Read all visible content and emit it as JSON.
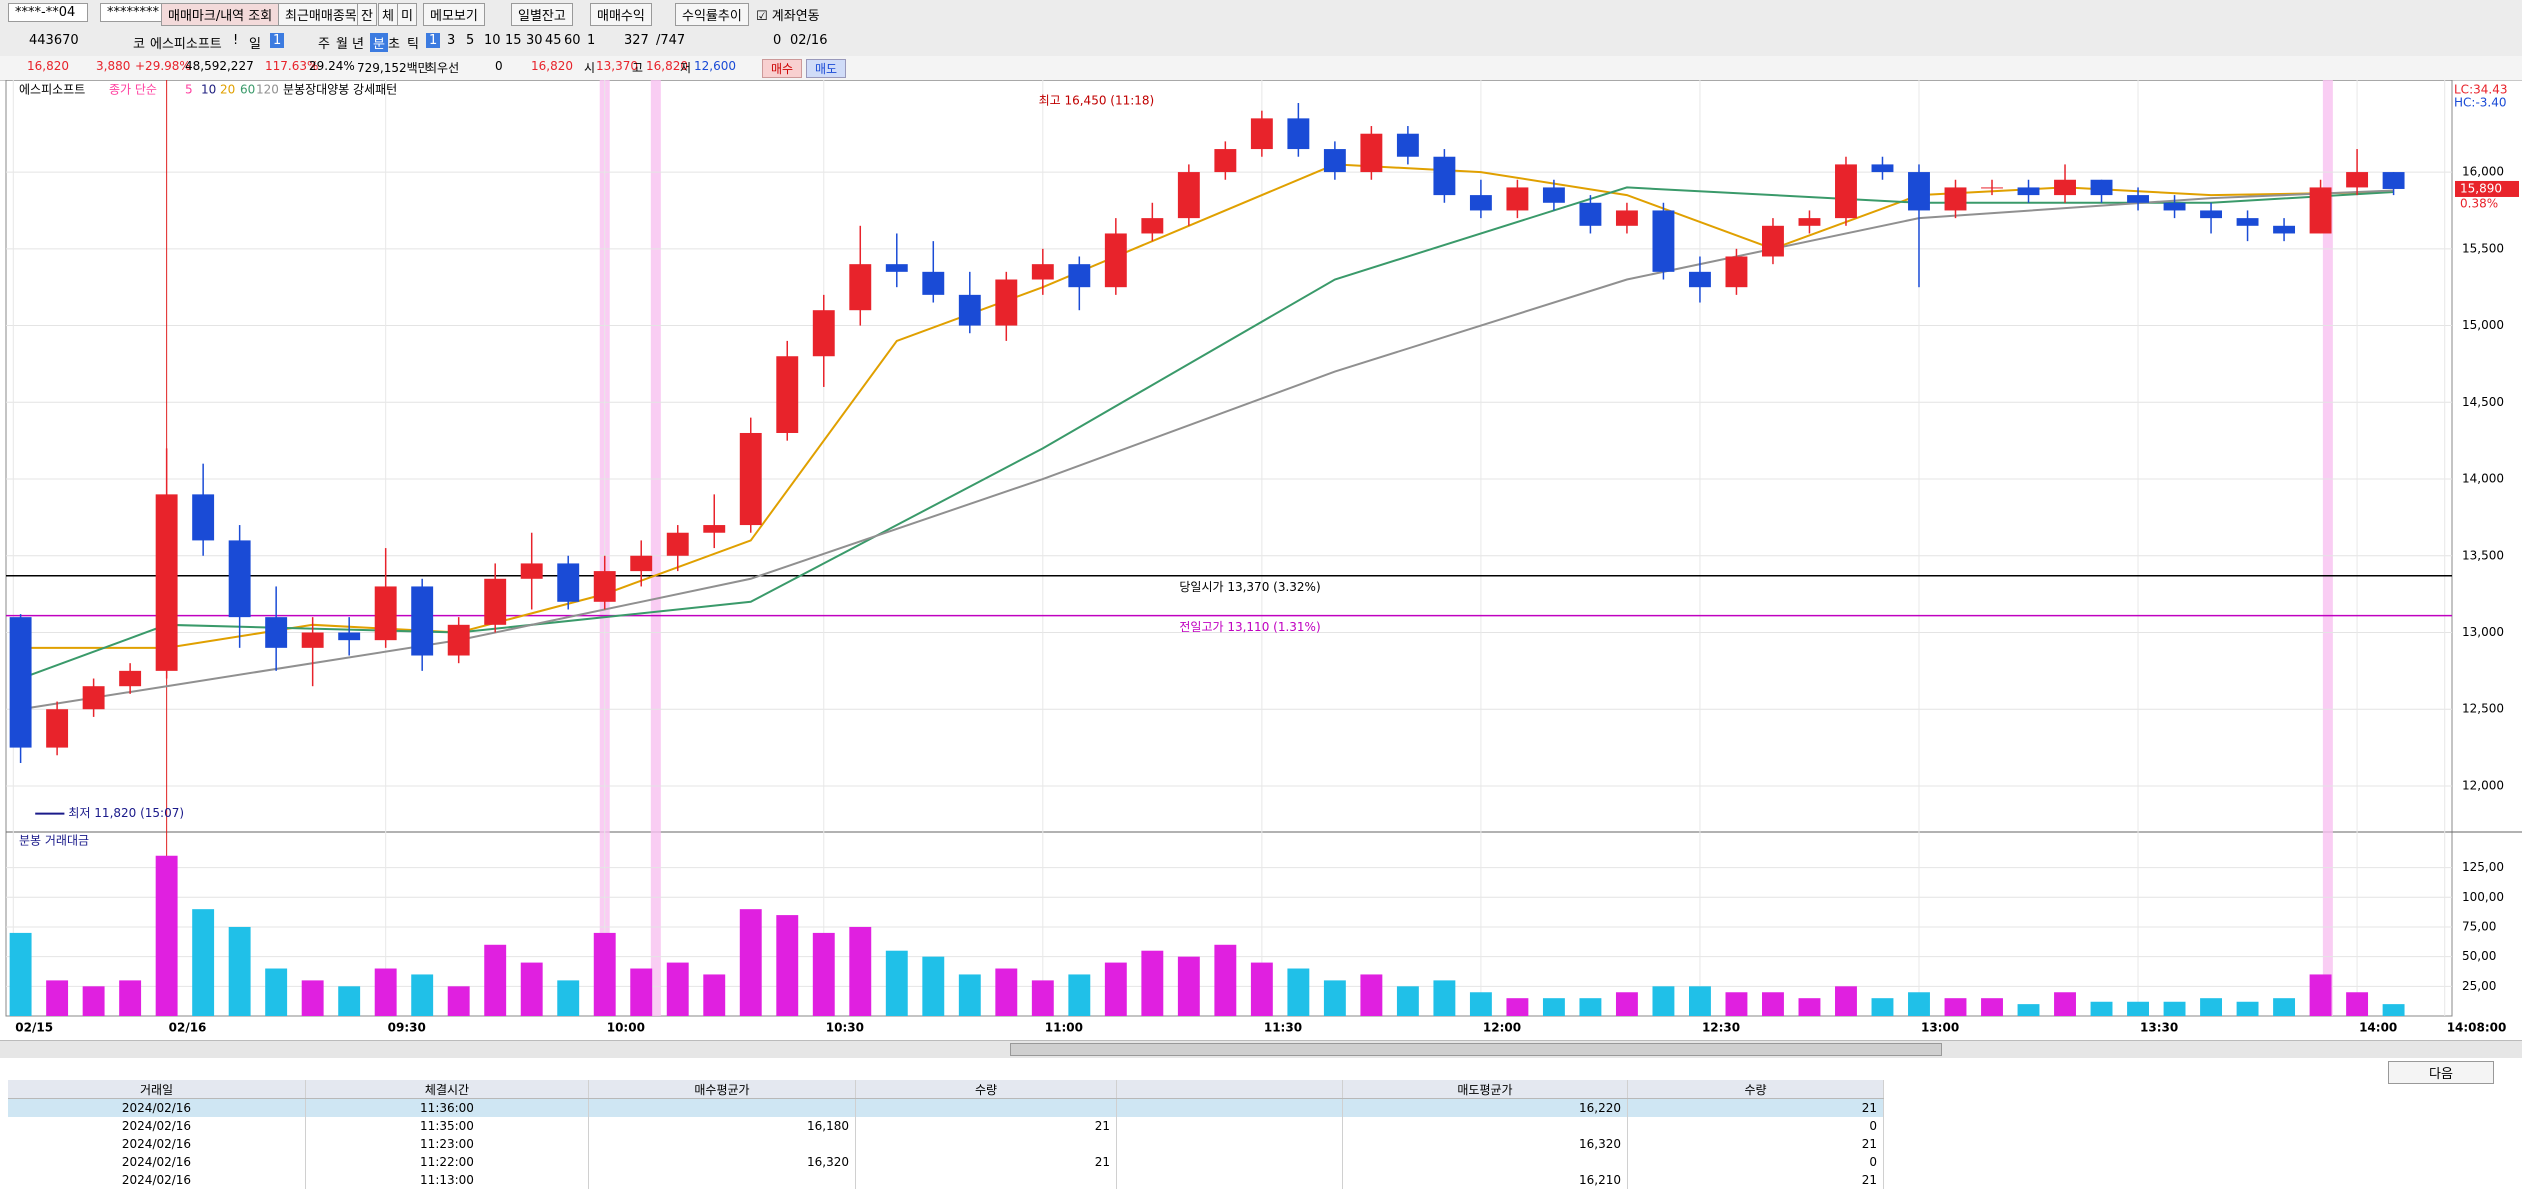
{
  "toolbar": {
    "row1": [
      "****-**04",
      "********",
      "매매마크/내역 조회",
      "최근매매종목",
      "잔",
      "체",
      "미",
      "메모보기",
      "일별잔고",
      "매매수익",
      "수익률추이",
      "계좌연동"
    ],
    "row2": [
      "443670",
      "코",
      "에스피소프트",
      "!",
      "일",
      "1",
      "주",
      "월",
      "년",
      "분",
      "초",
      "틱",
      "1",
      "3",
      "5",
      "10",
      "15",
      "30",
      "45",
      "60",
      "1",
      "327",
      "/747",
      "0",
      "02/16"
    ],
    "row3": [
      "16,820",
      "3,880",
      "+29.98%",
      "48,592,227",
      "117.63%",
      "29.24%",
      "729,152백만",
      "최우선",
      "0",
      "16,820",
      "시",
      "13,370",
      "고",
      "16,820",
      "저",
      "12,600",
      "매수",
      "매도"
    ]
  },
  "chart_data": {
    "type": "candlestick",
    "name": "에스피소프트",
    "ma_title": "종가 단순",
    "pattern": "분봉장대양봉 강세패턴",
    "lc": "LC:34.43",
    "hc": "HC:-3.40",
    "up_color": "#e8232b",
    "down_color": "#1a4bd6",
    "x": [
      -20,
      -15,
      -10,
      -5,
      0,
      5,
      10,
      15,
      20,
      25,
      30,
      35,
      40,
      45,
      50,
      55,
      60,
      65,
      70,
      75,
      80,
      85,
      90,
      95,
      100,
      105,
      110,
      115,
      120,
      125,
      130,
      135,
      140,
      145,
      150,
      155,
      160,
      165,
      170,
      175,
      180,
      185,
      190,
      195,
      200,
      205,
      210,
      215,
      220,
      225,
      230,
      235,
      240,
      245,
      250,
      255,
      260,
      265,
      270,
      275,
      280,
      285,
      290,
      295,
      300,
      305
    ],
    "open": [
      13100,
      12250,
      12500,
      12650,
      12750,
      13900,
      13600,
      13100,
      12900,
      13000,
      12950,
      13300,
      12850,
      13050,
      13350,
      13450,
      13200,
      13400,
      13500,
      13650,
      13700,
      14300,
      14800,
      15100,
      15400,
      15350,
      15200,
      15000,
      15300,
      15400,
      15250,
      15600,
      15700,
      16000,
      16150,
      16350,
      16150,
      16000,
      16250,
      16100,
      15850,
      15750,
      15900,
      15800,
      15650,
      15750,
      15350,
      15250,
      15450,
      15650,
      15700,
      16050,
      16000,
      15750,
      15900,
      15900,
      15850,
      15950,
      15850,
      15800,
      15750,
      15700,
      15650,
      15600,
      15900,
      16000
    ],
    "high": [
      13120,
      12550,
      12700,
      12800,
      14200,
      14100,
      13700,
      13300,
      13100,
      13100,
      13550,
      13350,
      13100,
      13450,
      13650,
      13500,
      13500,
      13600,
      13700,
      13900,
      14400,
      14900,
      15200,
      15650,
      15600,
      15550,
      15350,
      15350,
      15500,
      15450,
      15700,
      15800,
      16050,
      16200,
      16400,
      16450,
      16200,
      16300,
      16300,
      16150,
      15950,
      15950,
      15950,
      15850,
      15800,
      15800,
      15450,
      15500,
      15700,
      15750,
      16100,
      16100,
      16050,
      15950,
      15950,
      15950,
      16050,
      15950,
      15900,
      15850,
      15800,
      15750,
      15700,
      15950,
      16150,
      16000
    ],
    "low": [
      12150,
      12200,
      12450,
      12600,
      12700,
      13500,
      12900,
      12750,
      12650,
      12850,
      12900,
      12750,
      12800,
      13000,
      13150,
      13150,
      13150,
      13300,
      13400,
      13550,
      13650,
      14250,
      14600,
      15000,
      15250,
      15150,
      14950,
      14900,
      15200,
      15100,
      15200,
      15550,
      15650,
      15950,
      16100,
      16100,
      15950,
      15950,
      16050,
      15800,
      15700,
      15700,
      15750,
      15600,
      15600,
      15300,
      15150,
      15200,
      15400,
      15600,
      15650,
      15950,
      15250,
      15700,
      15850,
      15800,
      15800,
      15800,
      15750,
      15700,
      15600,
      15550,
      15550,
      15600,
      15850,
      15850
    ],
    "close": [
      12250,
      12500,
      12650,
      12750,
      13900,
      13600,
      13100,
      12900,
      13000,
      12950,
      13300,
      12850,
      13050,
      13350,
      13450,
      13200,
      13400,
      13500,
      13650,
      13700,
      14300,
      14800,
      15100,
      15400,
      15350,
      15200,
      15000,
      15300,
      15400,
      15250,
      15600,
      15700,
      16000,
      16150,
      16350,
      16150,
      16000,
      16250,
      16100,
      15850,
      15750,
      15900,
      15800,
      15650,
      15750,
      15350,
      15250,
      15450,
      15650,
      15700,
      16050,
      16000,
      15750,
      15900,
      15900,
      15850,
      15950,
      15850,
      15800,
      15750,
      15700,
      15650,
      15600,
      15900,
      16000,
      15890
    ],
    "ma": [
      {
        "name": "5",
        "color": "#ff40a0"
      },
      {
        "name": "10",
        "color": "#202080"
      },
      {
        "name": "20",
        "color": "#e0a000",
        "x": [
          -20,
          0,
          20,
          40,
          60,
          80,
          100,
          120,
          140,
          160,
          180,
          200,
          220,
          240,
          260,
          280,
          305
        ],
        "values": [
          12900,
          12900,
          13050,
          13000,
          13250,
          13600,
          14900,
          15250,
          15650,
          16050,
          16000,
          15850,
          15500,
          15850,
          15900,
          15850,
          15870
        ]
      },
      {
        "name": "60",
        "color": "#3a9a6a",
        "x": [
          -20,
          0,
          40,
          80,
          120,
          160,
          200,
          240,
          280,
          305
        ],
        "values": [
          12700,
          13050,
          13000,
          13200,
          14200,
          15300,
          15900,
          15800,
          15800,
          15870
        ]
      },
      {
        "name": "120",
        "color": "#909090",
        "x": [
          -20,
          0,
          40,
          80,
          120,
          160,
          200,
          240,
          280,
          305
        ],
        "values": [
          12500,
          12650,
          12950,
          13350,
          14000,
          14700,
          15300,
          15700,
          15830,
          15880
        ]
      }
    ],
    "xlim": [
      -22,
      313
    ],
    "xticks": [
      {
        "value": -21,
        "label": "02/15"
      },
      {
        "value": 0,
        "label": "02/16"
      },
      {
        "value": 30,
        "label": "09:30"
      },
      {
        "value": 60,
        "label": "10:00"
      },
      {
        "value": 90,
        "label": "10:30"
      },
      {
        "value": 120,
        "label": "11:00"
      },
      {
        "value": 150,
        "label": "11:30"
      },
      {
        "value": 180,
        "label": "12:00"
      },
      {
        "value": 210,
        "label": "12:30"
      },
      {
        "value": 240,
        "label": "13:00"
      },
      {
        "value": 270,
        "label": "13:30"
      },
      {
        "value": 300,
        "label": "14:00"
      },
      {
        "value": 312,
        "label": "14:08:00"
      }
    ],
    "ylim": [
      11700,
      16600
    ],
    "yticks": [
      {
        "value": 12000,
        "label": "12,000"
      },
      {
        "value": 12500,
        "label": "12,500"
      },
      {
        "value": 13000,
        "label": "13,000"
      },
      {
        "value": 13500,
        "label": "13,500"
      },
      {
        "value": 14000,
        "label": "14,000"
      },
      {
        "value": 14500,
        "label": "14,500"
      },
      {
        "value": 15000,
        "label": "15,000"
      },
      {
        "value": 15500,
        "label": "15,500"
      },
      {
        "value": 16000,
        "label": "16,000"
      }
    ],
    "ref_lines": [
      {
        "label": "당일시가 13,370 (3.32%)",
        "value": 13370,
        "color": "#000000"
      },
      {
        "label": "전일고가 13,110 (1.31%)",
        "value": 13110,
        "color": "#c000c0"
      }
    ],
    "annotations": [
      {
        "text": "최고 16,450 (11:18)",
        "value": 16450
      },
      {
        "text": "최저 11,820 (15:07)",
        "value": 11820
      }
    ],
    "last_price": {
      "value": 15890,
      "label": "15,890"
    },
    "last_change": "0.38%",
    "highlight_x": [
      60,
      67,
      296
    ],
    "volume_title": "분봉 거래대금",
    "volume_up_color": "#e020e0",
    "volume_down_color": "#20c0e8",
    "volume": [
      70,
      30,
      25,
      30,
      135,
      90,
      75,
      40,
      30,
      25,
      40,
      35,
      25,
      60,
      45,
      30,
      70,
      40,
      45,
      35,
      90,
      85,
      70,
      75,
      55,
      50,
      35,
      40,
      30,
      35,
      45,
      55,
      50,
      60,
      45,
      40,
      30,
      35,
      25,
      30,
      20,
      15,
      15,
      15,
      20,
      25,
      25,
      20,
      20,
      15,
      25,
      15,
      20,
      15,
      15,
      10,
      20,
      12,
      12,
      12,
      15,
      12,
      15,
      35,
      20,
      10
    ],
    "vlim": [
      0,
      155
    ],
    "vticks": [
      {
        "value": 25,
        "label": "25,00"
      },
      {
        "value": 50,
        "label": "50,00"
      },
      {
        "value": 75,
        "label": "75,00"
      },
      {
        "value": 100,
        "label": "100,00"
      },
      {
        "value": 125,
        "label": "125,00"
      }
    ]
  },
  "next_button": "다음",
  "table": {
    "headers": [
      "거래일",
      "체결시간",
      "매수평균가",
      "수량",
      null,
      "매도평균가",
      "수량"
    ],
    "rows": [
      [
        "2024/02/16",
        "11:36:00",
        null,
        null,
        null,
        "16,220",
        "21"
      ],
      [
        "2024/02/16",
        "11:35:00",
        "16,180",
        "21",
        null,
        null,
        "0"
      ],
      [
        "2024/02/16",
        "11:23:00",
        null,
        null,
        null,
        "16,320",
        "21"
      ],
      [
        "2024/02/16",
        "11:22:00",
        "16,320",
        "21",
        null,
        null,
        "0"
      ],
      [
        "2024/02/16",
        "11:13:00",
        null,
        null,
        null,
        "16,210",
        "21"
      ]
    ]
  }
}
